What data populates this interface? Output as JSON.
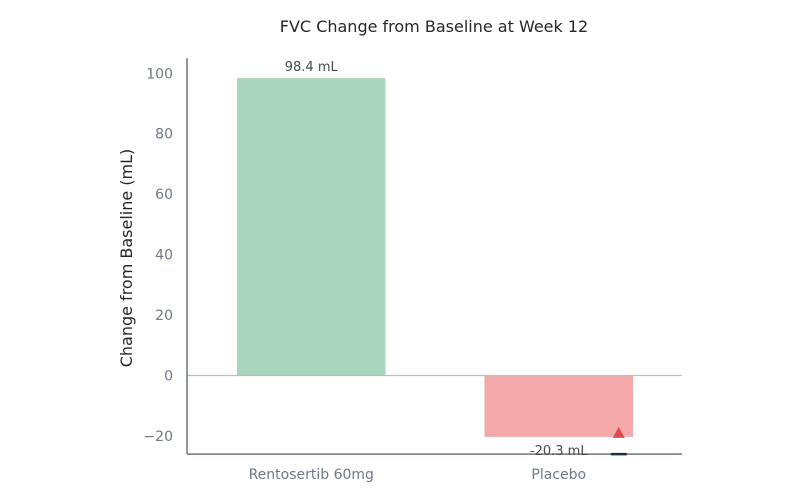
{
  "chart_data": {
    "type": "bar",
    "title": "FVC Change from Baseline at Week 12",
    "xlabel": "",
    "ylabel": "Change from Baseline (mL)",
    "categories": [
      "Rentosertib 60mg",
      "Placebo"
    ],
    "values": [
      98.4,
      -20.3
    ],
    "data_labels": [
      "98.4 mL",
      "-20.3 mL"
    ],
    "ylim": [
      -26,
      105
    ],
    "yticks": [
      -20,
      0,
      20,
      40,
      60,
      80,
      100
    ],
    "ytick_labels": [
      "−20",
      "0",
      "20",
      "40",
      "60",
      "80",
      "100"
    ],
    "grid": false,
    "legend": "none",
    "colors": {
      "bars": [
        "#a8d5bc",
        "#f3a9a9"
      ],
      "axis": "#6e7681",
      "zero_line": "#a9c3d9",
      "marker": "#e04a4a",
      "marker_edge": "#1f2d3d"
    },
    "markers": [
      {
        "category": "Placebo",
        "value": -19.0,
        "shape": "triangle-up",
        "color": "#e04a4a"
      }
    ]
  }
}
